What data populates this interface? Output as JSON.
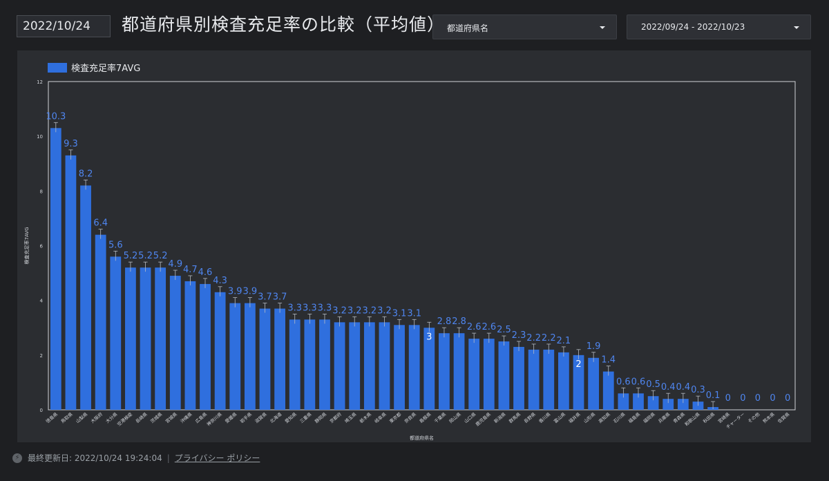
{
  "header": {
    "date_value": "2022/10/24",
    "title": "都道府県別検査充足率の比較（平均値）",
    "pref_filter_label": "都道府県名",
    "date_range_label": "2022/09/24 - 2022/10/23"
  },
  "footer": {
    "updated": "最終更新日: 2022/10/24 19:24:04",
    "privacy_link": "プライバシー ポリシー"
  },
  "colors": {
    "bar": "#2f6fde",
    "bar_label": "#4f86f0",
    "bar_label_inside": "#ffffff",
    "axis": "#d0d3d8",
    "background": "#2b2d31"
  },
  "chart_data": {
    "type": "bar",
    "legend": [
      "検査充足率7AVG"
    ],
    "legend_position": "top-left",
    "xlabel": "都道府県名",
    "ylabel": "検査充足率7AVG",
    "ylim": [
      0,
      12
    ],
    "yticks": [
      0,
      2,
      4,
      6,
      8,
      10,
      12
    ],
    "grid": false,
    "error_bars": true,
    "series": [
      {
        "name": "検査充足率7AVG",
        "values": [
          10.3,
          9.3,
          8.2,
          6.4,
          5.6,
          5.2,
          5.2,
          5.2,
          4.9,
          4.7,
          4.6,
          4.3,
          3.9,
          3.9,
          3.7,
          3.7,
          3.3,
          3.3,
          3.3,
          3.2,
          3.2,
          3.2,
          3.2,
          3.1,
          3.1,
          3,
          2.8,
          2.8,
          2.6,
          2.6,
          2.5,
          2.3,
          2.2,
          2.2,
          2.1,
          2,
          1.9,
          1.4,
          0.6,
          0.6,
          0.5,
          0.4,
          0.4,
          0.3,
          0.1,
          0,
          0,
          0,
          0,
          0
        ]
      }
    ],
    "labels": [
      "10.3",
      "9.3",
      "8.2",
      "6.4",
      "5.6",
      "5.2",
      "5.2",
      "5.2",
      "4.9",
      "4.7",
      "4.6",
      "4.3",
      "3.9",
      "3.9",
      "3.7",
      "3.7",
      "3.3",
      "3.3",
      "3.3",
      "3.2",
      "3.2",
      "3.2",
      "3.2",
      "3.1",
      "3.1",
      "3",
      "2.8",
      "2.8",
      "2.6",
      "2.6",
      "2.5",
      "2.3",
      "2.2",
      "2.2",
      "2.1",
      "2",
      "1.9",
      "1.4",
      "0.6",
      "0.6",
      "0.5",
      "0.4",
      "0.4",
      "0.3",
      "0.1",
      "0",
      "0",
      "0",
      "0",
      "0"
    ],
    "categories": [
      "徳島県",
      "鳥取県",
      "山梨県",
      "大阪府",
      "大分県",
      "空港検疫",
      "長崎県",
      "茨城県",
      "宮城県",
      "沖縄県",
      "広島県",
      "神奈川県",
      "愛媛県",
      "岩手県",
      "滋賀県",
      "北海道",
      "愛知県",
      "三重県",
      "静岡県",
      "京都府",
      "埼玉県",
      "栃木県",
      "岐阜県",
      "東京都",
      "奈良県",
      "島根県",
      "千葉県",
      "岡山県",
      "山口県",
      "鹿児島県",
      "新潟県",
      "群馬県",
      "長野県",
      "香川県",
      "富山県",
      "福井県",
      "山形県",
      "高知県",
      "石川県",
      "福島県",
      "福岡県",
      "兵庫県",
      "青森県",
      "和歌山県",
      "秋田県",
      "宮崎県",
      "チャーター",
      "その他",
      "熊本県",
      "佐賀県"
    ]
  }
}
